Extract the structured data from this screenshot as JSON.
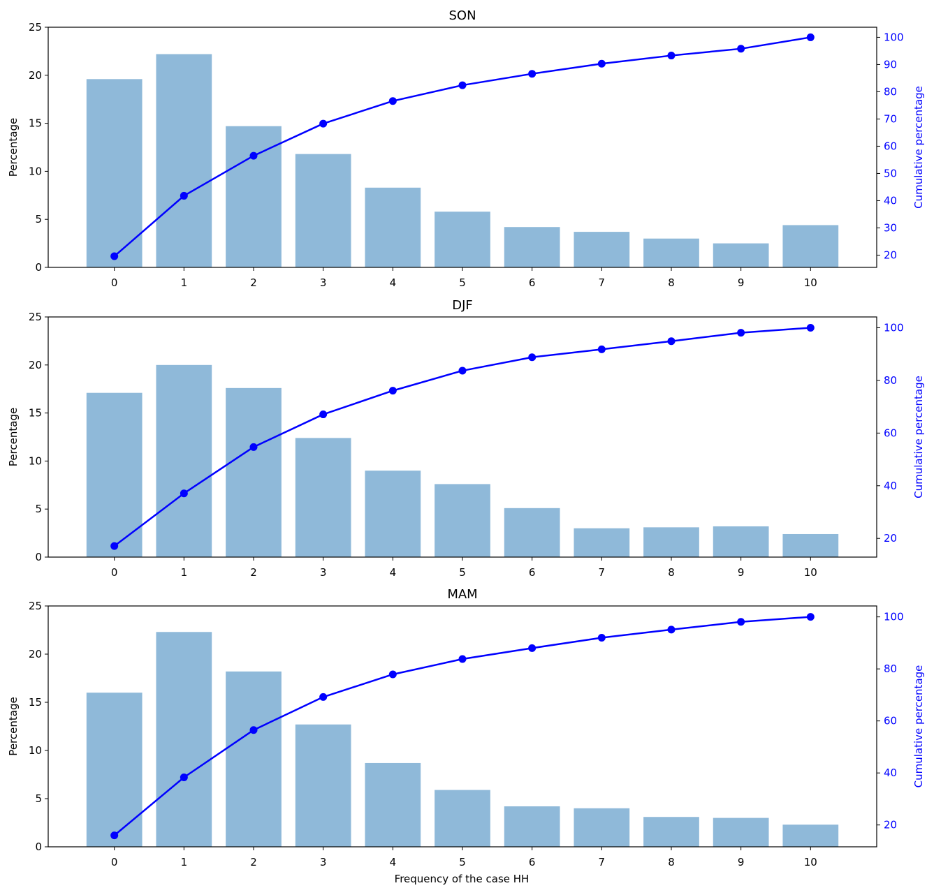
{
  "colors": {
    "bar": "#8fb9d9",
    "line": "#0000ff",
    "right_axis": "#0000ff",
    "axis": "#000000"
  },
  "figure_xlabel": "Frequency of the case HH",
  "chart_data": [
    {
      "type": "bar",
      "title": "SON",
      "categories": [
        "0",
        "1",
        "2",
        "3",
        "4",
        "5",
        "6",
        "7",
        "8",
        "9",
        "10"
      ],
      "x": [
        0,
        1,
        2,
        3,
        4,
        5,
        6,
        7,
        8,
        9,
        10
      ],
      "values": [
        19.6,
        22.2,
        14.7,
        11.8,
        8.3,
        5.8,
        4.2,
        3.7,
        3.0,
        2.5,
        4.4
      ],
      "ylabel": "Percentage",
      "ylim": [
        0,
        25
      ],
      "yticks": [
        0,
        5,
        10,
        15,
        20,
        25
      ],
      "secondary": {
        "type": "line",
        "ylabel": "Cumulative percentage",
        "values": [
          19.6,
          41.8,
          56.5,
          68.3,
          76.6,
          82.4,
          86.6,
          90.3,
          93.3,
          95.8,
          100.0
        ],
        "ylim": [
          15.5,
          103.7
        ],
        "yticks": [
          20,
          30,
          40,
          50,
          60,
          70,
          80,
          90,
          100
        ]
      }
    },
    {
      "type": "bar",
      "title": "DJF",
      "categories": [
        "0",
        "1",
        "2",
        "3",
        "4",
        "5",
        "6",
        "7",
        "8",
        "9",
        "10"
      ],
      "x": [
        0,
        1,
        2,
        3,
        4,
        5,
        6,
        7,
        8,
        9,
        10
      ],
      "values": [
        17.1,
        20.0,
        17.6,
        12.4,
        9.0,
        7.6,
        5.1,
        3.0,
        3.1,
        3.2,
        2.4
      ],
      "ylabel": "Percentage",
      "ylim": [
        0,
        25
      ],
      "yticks": [
        0,
        5,
        10,
        15,
        20,
        25
      ],
      "secondary": {
        "type": "line",
        "ylabel": "Cumulative percentage",
        "values": [
          17.1,
          37.1,
          54.7,
          67.1,
          76.1,
          83.7,
          88.8,
          91.8,
          94.9,
          98.1,
          100.0
        ],
        "ylim": [
          12.9,
          104.1
        ],
        "yticks": [
          20,
          40,
          60,
          80,
          100
        ]
      }
    },
    {
      "type": "bar",
      "title": "MAM",
      "categories": [
        "0",
        "1",
        "2",
        "3",
        "4",
        "5",
        "6",
        "7",
        "8",
        "9",
        "10"
      ],
      "x": [
        0,
        1,
        2,
        3,
        4,
        5,
        6,
        7,
        8,
        9,
        10
      ],
      "values": [
        16.0,
        22.3,
        18.2,
        12.7,
        8.7,
        5.9,
        4.2,
        4.0,
        3.1,
        3.0,
        2.3
      ],
      "ylabel": "Percentage",
      "ylim": [
        0,
        25
      ],
      "yticks": [
        0,
        5,
        10,
        15,
        20,
        25
      ],
      "secondary": {
        "type": "line",
        "ylabel": "Cumulative percentage",
        "values": [
          16.0,
          38.3,
          56.5,
          69.2,
          77.9,
          83.8,
          88.0,
          92.0,
          95.1,
          98.1,
          100.0
        ],
        "ylim": [
          11.6,
          104.2
        ],
        "yticks": [
          20,
          40,
          60,
          80,
          100
        ]
      }
    }
  ]
}
